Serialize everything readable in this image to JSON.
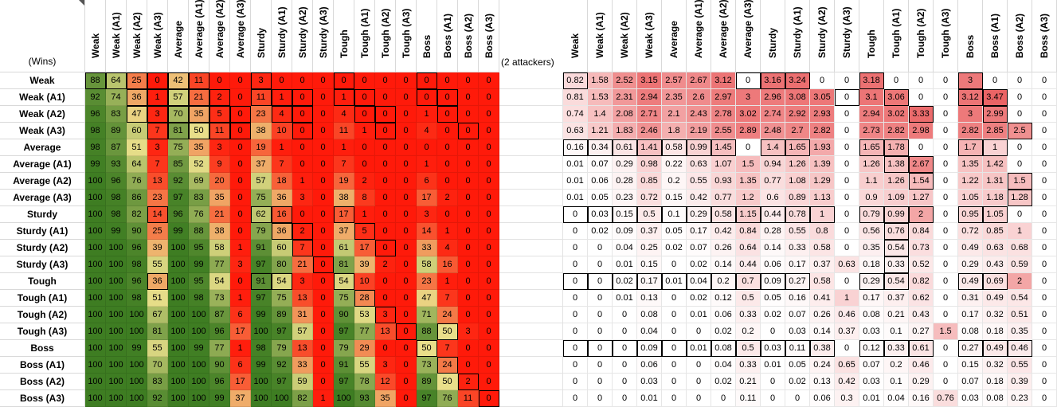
{
  "corner_label": "(Wins)",
  "attackers_note": "(2 attackers)",
  "rows": [
    "Weak",
    "Weak (A1)",
    "Weak (A2)",
    "Weak (A3)",
    "Average",
    "Average (A1)",
    "Average (A2)",
    "Average (A3)",
    "Sturdy",
    "Sturdy (A1)",
    "Sturdy (A2)",
    "Sturdy (A3)",
    "Tough",
    "Tough (A1)",
    "Tough (A2)",
    "Tough (A3)",
    "Boss",
    "Boss (A1)",
    "Boss (A2)",
    "Boss (A3)"
  ],
  "columns": [
    "Weak",
    "Weak (A1)",
    "Weak (A2)",
    "Weak (A3)",
    "Average",
    "Average (A1)",
    "Average (A2)",
    "Average (A3)",
    "Sturdy",
    "Sturdy (A1)",
    "Sturdy (A2)",
    "Sturdy (A3)",
    "Tough",
    "Tough (A1)",
    "Tough (A2)",
    "Tough (A3)",
    "Boss",
    "Boss (A1)",
    "Boss (A2)",
    "Boss (A3)"
  ],
  "wins": [
    [
      "88",
      "64",
      "25",
      "0",
      "42",
      "11",
      "0",
      "0",
      "3",
      "0",
      "0",
      "0",
      "0",
      "0",
      "0",
      "0",
      "0",
      "0",
      "0",
      "0"
    ],
    [
      "92",
      "74",
      "36",
      "1",
      "57",
      "21",
      "2",
      "0",
      "11",
      "1",
      "0",
      "0",
      "1",
      "0",
      "0",
      "0",
      "0",
      "0",
      "0",
      "0"
    ],
    [
      "96",
      "83",
      "47",
      "3",
      "70",
      "35",
      "5",
      "0",
      "23",
      "4",
      "0",
      "0",
      "4",
      "0",
      "0",
      "0",
      "1",
      "0",
      "0",
      "0"
    ],
    [
      "98",
      "89",
      "60",
      "7",
      "81",
      "50",
      "11",
      "0",
      "38",
      "10",
      "0",
      "0",
      "11",
      "1",
      "0",
      "0",
      "4",
      "0",
      "0",
      "0"
    ],
    [
      "98",
      "87",
      "51",
      "3",
      "75",
      "35",
      "3",
      "0",
      "19",
      "1",
      "0",
      "0",
      "1",
      "0",
      "0",
      "0",
      "0",
      "0",
      "0",
      "0"
    ],
    [
      "99",
      "93",
      "64",
      "7",
      "85",
      "52",
      "9",
      "0",
      "37",
      "7",
      "0",
      "0",
      "7",
      "0",
      "0",
      "0",
      "1",
      "0",
      "0",
      "0"
    ],
    [
      "100",
      "96",
      "76",
      "13",
      "92",
      "69",
      "20",
      "0",
      "57",
      "18",
      "1",
      "0",
      "19",
      "2",
      "0",
      "0",
      "6",
      "0",
      "0",
      "0"
    ],
    [
      "100",
      "98",
      "86",
      "23",
      "97",
      "83",
      "35",
      "0",
      "75",
      "36",
      "3",
      "0",
      "38",
      "8",
      "0",
      "0",
      "17",
      "2",
      "0",
      "0"
    ],
    [
      "100",
      "98",
      "82",
      "14",
      "96",
      "76",
      "21",
      "0",
      "62",
      "16",
      "0",
      "0",
      "17",
      "1",
      "0",
      "0",
      "3",
      "0",
      "0",
      "0"
    ],
    [
      "100",
      "99",
      "90",
      "25",
      "99",
      "88",
      "38",
      "0",
      "79",
      "36",
      "2",
      "0",
      "37",
      "5",
      "0",
      "0",
      "14",
      "1",
      "0",
      "0"
    ],
    [
      "100",
      "100",
      "96",
      "39",
      "100",
      "95",
      "58",
      "1",
      "91",
      "60",
      "7",
      "0",
      "61",
      "17",
      "0",
      "0",
      "33",
      "4",
      "0",
      "0"
    ],
    [
      "100",
      "100",
      "98",
      "55",
      "100",
      "99",
      "77",
      "3",
      "97",
      "80",
      "21",
      "0",
      "81",
      "39",
      "2",
      "0",
      "58",
      "16",
      "0",
      "0"
    ],
    [
      "100",
      "100",
      "96",
      "36",
      "100",
      "95",
      "54",
      "0",
      "91",
      "54",
      "3",
      "0",
      "54",
      "10",
      "0",
      "0",
      "23",
      "1",
      "0",
      "0"
    ],
    [
      "100",
      "100",
      "98",
      "51",
      "100",
      "98",
      "73",
      "1",
      "97",
      "75",
      "13",
      "0",
      "75",
      "28",
      "0",
      "0",
      "47",
      "7",
      "0",
      "0"
    ],
    [
      "100",
      "100",
      "100",
      "67",
      "100",
      "100",
      "87",
      "6",
      "99",
      "89",
      "31",
      "0",
      "90",
      "53",
      "3",
      "0",
      "71",
      "24",
      "0",
      "0"
    ],
    [
      "100",
      "100",
      "100",
      "81",
      "100",
      "100",
      "96",
      "17",
      "100",
      "97",
      "57",
      "0",
      "97",
      "77",
      "13",
      "0",
      "88",
      "50",
      "3",
      "0"
    ],
    [
      "100",
      "100",
      "99",
      "55",
      "100",
      "99",
      "77",
      "1",
      "98",
      "79",
      "13",
      "0",
      "79",
      "29",
      "0",
      "0",
      "50",
      "7",
      "0",
      "0"
    ],
    [
      "100",
      "100",
      "100",
      "70",
      "100",
      "100",
      "90",
      "6",
      "99",
      "92",
      "33",
      "0",
      "91",
      "55",
      "3",
      "0",
      "73",
      "24",
      "0",
      "0"
    ],
    [
      "100",
      "100",
      "100",
      "83",
      "100",
      "100",
      "96",
      "17",
      "100",
      "97",
      "59",
      "0",
      "97",
      "78",
      "12",
      "0",
      "89",
      "50",
      "2",
      "0"
    ],
    [
      "100",
      "100",
      "100",
      "92",
      "100",
      "100",
      "99",
      "37",
      "100",
      "100",
      "82",
      "1",
      "100",
      "93",
      "35",
      "0",
      "97",
      "76",
      "11",
      "0"
    ]
  ],
  "ratios": [
    [
      "0.82",
      "1.58",
      "2.52",
      "3.15",
      "2.57",
      "2.67",
      "3.12",
      "0",
      "3.16",
      "3.24",
      "0",
      "0",
      "3.18",
      "0",
      "0",
      "0",
      "3",
      "0",
      "0",
      "0"
    ],
    [
      "0.81",
      "1.53",
      "2.31",
      "2.94",
      "2.35",
      "2.6",
      "2.97",
      "3",
      "2.96",
      "3.08",
      "3.05",
      "0",
      "3.1",
      "3.06",
      "0",
      "0",
      "3.12",
      "3.47",
      "0",
      "0"
    ],
    [
      "0.74",
      "1.4",
      "2.08",
      "2.71",
      "2.1",
      "2.43",
      "2.78",
      "3.02",
      "2.74",
      "2.92",
      "2.93",
      "0",
      "2.94",
      "3.02",
      "3.33",
      "0",
      "3",
      "2.99",
      "0",
      "0"
    ],
    [
      "0.63",
      "1.21",
      "1.83",
      "2.46",
      "1.8",
      "2.19",
      "2.55",
      "2.89",
      "2.48",
      "2.7",
      "2.82",
      "0",
      "2.73",
      "2.82",
      "2.98",
      "0",
      "2.82",
      "2.85",
      "2.5",
      "0"
    ],
    [
      "0.16",
      "0.34",
      "0.61",
      "1.41",
      "0.58",
      "0.99",
      "1.45",
      "0",
      "1.4",
      "1.65",
      "1.93",
      "0",
      "1.65",
      "1.78",
      "0",
      "0",
      "1.7",
      "1",
      "0",
      "0"
    ],
    [
      "0.01",
      "0.07",
      "0.29",
      "0.98",
      "0.22",
      "0.63",
      "1.07",
      "1.5",
      "0.94",
      "1.26",
      "1.39",
      "0",
      "1.26",
      "1.38",
      "2.67",
      "0",
      "1.35",
      "1.42",
      "0",
      "0"
    ],
    [
      "0.01",
      "0.06",
      "0.28",
      "0.85",
      "0.2",
      "0.55",
      "0.93",
      "1.35",
      "0.77",
      "1.08",
      "1.29",
      "0",
      "1.1",
      "1.26",
      "1.54",
      "0",
      "1.22",
      "1.31",
      "1.5",
      "0"
    ],
    [
      "0.01",
      "0.05",
      "0.23",
      "0.72",
      "0.15",
      "0.42",
      "0.77",
      "1.2",
      "0.6",
      "0.89",
      "1.13",
      "0",
      "0.9",
      "1.09",
      "1.27",
      "0",
      "1.05",
      "1.18",
      "1.28",
      "0"
    ],
    [
      "0",
      "0.03",
      "0.15",
      "0.5",
      "0.1",
      "0.29",
      "0.58",
      "1.15",
      "0.44",
      "0.78",
      "1",
      "0",
      "0.79",
      "0.99",
      "2",
      "0",
      "0.95",
      "1.05",
      "0",
      "0"
    ],
    [
      "0",
      "0.02",
      "0.09",
      "0.37",
      "0.05",
      "0.17",
      "0.42",
      "0.84",
      "0.28",
      "0.55",
      "0.8",
      "0",
      "0.56",
      "0.76",
      "0.84",
      "0",
      "0.72",
      "0.85",
      "1",
      "0"
    ],
    [
      "0",
      "0",
      "0.04",
      "0.25",
      "0.02",
      "0.07",
      "0.26",
      "0.64",
      "0.14",
      "0.33",
      "0.58",
      "0",
      "0.35",
      "0.54",
      "0.73",
      "0",
      "0.49",
      "0.63",
      "0.68",
      "0"
    ],
    [
      "0",
      "0",
      "0.01",
      "0.15",
      "0",
      "0.02",
      "0.14",
      "0.44",
      "0.06",
      "0.17",
      "0.37",
      "0.63",
      "0.18",
      "0.33",
      "0.52",
      "0",
      "0.29",
      "0.43",
      "0.59",
      "0"
    ],
    [
      "0",
      "0",
      "0.02",
      "0.17",
      "0.01",
      "0.04",
      "0.2",
      "0.7",
      "0.09",
      "0.27",
      "0.58",
      "0",
      "0.29",
      "0.54",
      "0.82",
      "0",
      "0.49",
      "0.69",
      "2",
      "0"
    ],
    [
      "0",
      "0",
      "0.01",
      "0.13",
      "0",
      "0.02",
      "0.12",
      "0.5",
      "0.05",
      "0.16",
      "0.41",
      "1",
      "0.17",
      "0.37",
      "0.62",
      "0",
      "0.31",
      "0.49",
      "0.54",
      "0"
    ],
    [
      "0",
      "0",
      "0",
      "0.08",
      "0",
      "0.01",
      "0.06",
      "0.33",
      "0.02",
      "0.07",
      "0.26",
      "0.46",
      "0.08",
      "0.21",
      "0.43",
      "0",
      "0.17",
      "0.32",
      "0.51",
      "0"
    ],
    [
      "0",
      "0",
      "0",
      "0.04",
      "0",
      "0",
      "0.02",
      "0.2",
      "0",
      "0.03",
      "0.14",
      "0.37",
      "0.03",
      "0.1",
      "0.27",
      "1.5",
      "0.08",
      "0.18",
      "0.35",
      "0"
    ],
    [
      "0",
      "0",
      "0",
      "0.09",
      "0",
      "0.01",
      "0.08",
      "0.5",
      "0.03",
      "0.11",
      "0.38",
      "0",
      "0.12",
      "0.33",
      "0.61",
      "0",
      "0.27",
      "0.49",
      "0.46",
      "0"
    ],
    [
      "0",
      "0",
      "0",
      "0.06",
      "0",
      "0",
      "0.04",
      "0.33",
      "0.01",
      "0.05",
      "0.24",
      "0.65",
      "0.07",
      "0.2",
      "0.46",
      "0",
      "0.15",
      "0.32",
      "0.55",
      "0"
    ],
    [
      "0",
      "0",
      "0",
      "0.03",
      "0",
      "0",
      "0.02",
      "0.21",
      "0",
      "0.02",
      "0.13",
      "0.42",
      "0.03",
      "0.1",
      "0.29",
      "0",
      "0.07",
      "0.18",
      "0.39",
      "0"
    ],
    [
      "0",
      "0",
      "0",
      "0.01",
      "0",
      "0",
      "0",
      "0.11",
      "0",
      "0",
      "0.06",
      "0.3",
      "0.01",
      "0.04",
      "0.16",
      "0.76",
      "0.03",
      "0.08",
      "0.23",
      "0"
    ]
  ],
  "boxed_wins": [
    [
      0,
      0
    ],
    [
      0,
      1
    ],
    [
      0,
      2
    ],
    [
      0,
      3
    ],
    [
      0,
      4
    ],
    [
      0,
      5
    ],
    [
      0,
      8
    ],
    [
      0,
      12
    ],
    [
      0,
      16
    ],
    [
      1,
      2
    ],
    [
      1,
      3
    ],
    [
      1,
      4
    ],
    [
      1,
      5
    ],
    [
      1,
      6
    ],
    [
      1,
      8
    ],
    [
      1,
      9
    ],
    [
      1,
      10
    ],
    [
      1,
      12
    ],
    [
      1,
      13
    ],
    [
      1,
      16
    ],
    [
      1,
      17
    ],
    [
      2,
      2
    ],
    [
      2,
      3
    ],
    [
      2,
      4
    ],
    [
      2,
      5
    ],
    [
      2,
      6
    ],
    [
      2,
      7
    ],
    [
      2,
      9
    ],
    [
      2,
      10
    ],
    [
      2,
      13
    ],
    [
      2,
      14
    ],
    [
      2,
      17
    ],
    [
      3,
      3
    ],
    [
      3,
      4
    ],
    [
      3,
      5
    ],
    [
      3,
      6
    ],
    [
      3,
      7
    ],
    [
      3,
      10
    ],
    [
      3,
      14
    ],
    [
      3,
      18
    ],
    [
      8,
      3
    ],
    [
      8,
      8
    ],
    [
      8,
      9
    ],
    [
      8,
      12
    ],
    [
      9,
      9
    ],
    [
      9,
      10
    ],
    [
      9,
      13
    ],
    [
      10,
      10
    ],
    [
      10,
      14
    ],
    [
      11,
      11
    ],
    [
      12,
      3
    ],
    [
      12,
      8
    ],
    [
      12,
      9
    ],
    [
      12,
      12
    ],
    [
      13,
      13
    ],
    [
      14,
      14
    ],
    [
      15,
      15
    ],
    [
      15,
      17
    ],
    [
      16,
      16
    ],
    [
      17,
      17
    ],
    [
      18,
      18
    ],
    [
      19,
      19
    ]
  ],
  "boxed_ratios": [
    [
      0,
      0
    ],
    [
      0,
      7
    ],
    [
      0,
      8
    ],
    [
      0,
      9
    ],
    [
      0,
      12
    ],
    [
      0,
      16
    ],
    [
      1,
      11
    ],
    [
      1,
      13
    ],
    [
      1,
      16
    ],
    [
      1,
      17
    ],
    [
      2,
      14
    ],
    [
      2,
      17
    ],
    [
      3,
      18
    ],
    [
      4,
      0
    ],
    [
      4,
      1
    ],
    [
      4,
      2
    ],
    [
      4,
      3
    ],
    [
      4,
      4
    ],
    [
      4,
      5
    ],
    [
      4,
      6
    ],
    [
      4,
      8
    ],
    [
      4,
      9
    ],
    [
      4,
      12
    ],
    [
      4,
      13
    ],
    [
      4,
      16
    ],
    [
      4,
      17
    ],
    [
      5,
      13
    ],
    [
      5,
      14
    ],
    [
      6,
      14
    ],
    [
      6,
      18
    ],
    [
      7,
      18
    ],
    [
      8,
      0
    ],
    [
      8,
      1
    ],
    [
      8,
      2
    ],
    [
      8,
      3
    ],
    [
      8,
      4
    ],
    [
      8,
      5
    ],
    [
      8,
      6
    ],
    [
      8,
      7
    ],
    [
      8,
      8
    ],
    [
      8,
      9
    ],
    [
      8,
      10
    ],
    [
      8,
      12
    ],
    [
      8,
      13
    ],
    [
      8,
      14
    ],
    [
      8,
      16
    ],
    [
      8,
      17
    ],
    [
      9,
      13
    ],
    [
      10,
      13
    ],
    [
      11,
      13
    ],
    [
      12,
      0
    ],
    [
      12,
      1
    ],
    [
      12,
      2
    ],
    [
      12,
      3
    ],
    [
      12,
      4
    ],
    [
      12,
      5
    ],
    [
      12,
      6
    ],
    [
      12,
      7
    ],
    [
      12,
      8
    ],
    [
      12,
      9
    ],
    [
      12,
      12
    ],
    [
      12,
      13
    ],
    [
      12,
      16
    ],
    [
      12,
      17
    ],
    [
      16,
      0
    ],
    [
      16,
      1
    ],
    [
      16,
      2
    ],
    [
      16,
      3
    ],
    [
      16,
      4
    ],
    [
      16,
      5
    ],
    [
      16,
      6
    ],
    [
      16,
      7
    ],
    [
      16,
      8
    ],
    [
      16,
      9
    ],
    [
      16,
      10
    ],
    [
      16,
      12
    ],
    [
      16,
      13
    ],
    [
      16,
      14
    ],
    [
      16,
      16
    ],
    [
      16,
      17
    ],
    [
      16,
      18
    ]
  ],
  "colors": {
    "win_high": "#3e7d22",
    "win_mid": "#e9df8a",
    "win_low": "#ff1a0a",
    "ratio_high": "#ea6364",
    "ratio_low": "#ffffff",
    "header_border": "#d9d9d9"
  }
}
